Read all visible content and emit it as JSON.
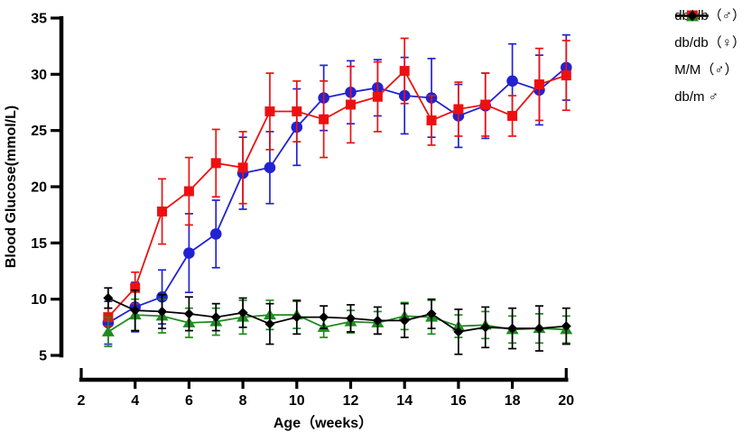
{
  "chart_data": {
    "type": "line",
    "title": "",
    "xlabel": "Age（weeks）",
    "ylabel": "Blood Glucose(mmol/L)",
    "x": [
      3,
      4,
      5,
      6,
      7,
      8,
      9,
      10,
      11,
      12,
      13,
      14,
      15,
      16,
      17,
      18,
      19,
      20
    ],
    "xlim": [
      2,
      20
    ],
    "ylim": [
      5,
      35
    ],
    "xticks": [
      2,
      4,
      6,
      8,
      10,
      12,
      14,
      16,
      18,
      20
    ],
    "yticks": [
      5,
      10,
      15,
      20,
      25,
      30,
      35
    ],
    "grid": false,
    "legend_position": "top-right",
    "series": [
      {
        "name": "db/db（♂）",
        "marker": "circle",
        "color": "#2222d2",
        "values": [
          7.9,
          9.3,
          10.2,
          14.1,
          15.8,
          21.2,
          21.7,
          25.3,
          27.9,
          28.4,
          28.8,
          28.1,
          27.9,
          26.3,
          27.2,
          29.4,
          28.6,
          30.6
        ],
        "errors": [
          1.9,
          2.2,
          2.4,
          3.5,
          3.0,
          3.2,
          3.2,
          3.4,
          2.9,
          2.8,
          2.5,
          3.4,
          3.5,
          2.8,
          2.9,
          3.3,
          3.1,
          2.9
        ]
      },
      {
        "name": "db/db（♀）",
        "marker": "square",
        "color": "#ee1010",
        "values": [
          8.4,
          11.0,
          17.8,
          19.6,
          22.1,
          21.7,
          26.7,
          26.7,
          26.0,
          27.3,
          28.0,
          30.3,
          25.9,
          26.9,
          27.3,
          26.3,
          29.1,
          29.9
        ],
        "errors": [
          0.8,
          1.4,
          2.9,
          3.0,
          3.0,
          3.2,
          3.4,
          2.7,
          3.4,
          3.4,
          3.1,
          2.9,
          2.2,
          2.4,
          2.8,
          1.8,
          3.2,
          3.1
        ]
      },
      {
        "name": "M/M（♂）",
        "marker": "triangle",
        "color": "#1d8c1d",
        "values": [
          7.1,
          8.6,
          8.5,
          7.9,
          8.0,
          8.4,
          8.6,
          8.6,
          7.5,
          8.0,
          7.9,
          8.5,
          8.4,
          7.6,
          7.7,
          7.3,
          7.4,
          7.3
        ],
        "errors": [
          1.3,
          1.4,
          1.5,
          1.3,
          1.2,
          1.5,
          1.3,
          1.2,
          0.9,
          1.0,
          1.0,
          1.2,
          1.5,
          1.0,
          1.2,
          1.2,
          1.3,
          1.2
        ]
      },
      {
        "name": "db/m ♂",
        "marker": "diamond",
        "color": "#000000",
        "values": [
          10.1,
          9.0,
          8.9,
          8.7,
          8.4,
          8.8,
          7.8,
          8.4,
          8.4,
          8.3,
          8.1,
          8.1,
          8.7,
          7.1,
          7.5,
          7.4,
          7.4,
          7.6
        ],
        "errors": [
          0.9,
          1.8,
          1.5,
          1.5,
          1.2,
          1.3,
          1.8,
          1.5,
          1.0,
          1.2,
          1.2,
          1.5,
          1.3,
          2.0,
          1.8,
          1.8,
          2.0,
          1.6
        ]
      }
    ]
  }
}
